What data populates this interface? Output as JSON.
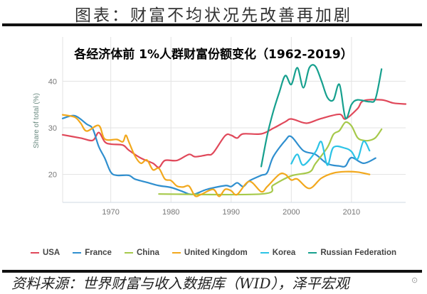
{
  "header": {
    "title": "图表：财富不均状况先改善再加剧"
  },
  "footer": {
    "source": "资料来源：世界财富与收入数据库（WID），泽平宏观",
    "watermark": "泽平宏观"
  },
  "chart_data": {
    "type": "line",
    "title": "各经济体前 1%人群财富份额变化（1962-2019）",
    "xlabel": "",
    "ylabel": "Share of total (%)",
    "xlim": [
      1962,
      2019
    ],
    "ylim": [
      14,
      49.5
    ],
    "xticks": [
      1970,
      1980,
      1990,
      2000,
      2010
    ],
    "yticks": [
      20,
      30,
      40
    ],
    "grid": true,
    "legend_position": "bottom",
    "series": [
      {
        "name": "USA",
        "color": "#e0485a",
        "points": [
          [
            1962,
            28.5
          ],
          [
            1965,
            27.8
          ],
          [
            1967,
            27.3
          ],
          [
            1968,
            29
          ],
          [
            1969,
            27
          ],
          [
            1970,
            26.5
          ],
          [
            1972,
            26.3
          ],
          [
            1973,
            25.2
          ],
          [
            1975,
            23.5
          ],
          [
            1977,
            22.4
          ],
          [
            1978,
            21.5
          ],
          [
            1979,
            23
          ],
          [
            1981,
            23
          ],
          [
            1983,
            24.3
          ],
          [
            1984,
            23.8
          ],
          [
            1986,
            24.2
          ],
          [
            1987,
            24.6
          ],
          [
            1989,
            28.3
          ],
          [
            1990,
            28.4
          ],
          [
            1991,
            27.8
          ],
          [
            1992,
            28.7
          ],
          [
            1995,
            28.7
          ],
          [
            1997,
            29.9
          ],
          [
            1999,
            31.3
          ],
          [
            2000,
            31.9
          ],
          [
            2002,
            31.1
          ],
          [
            2003,
            31.1
          ],
          [
            2005,
            32
          ],
          [
            2008,
            32.9
          ],
          [
            2009,
            31.9
          ],
          [
            2011,
            34.1
          ],
          [
            2012,
            35.8
          ],
          [
            2015,
            36
          ],
          [
            2017,
            35.3
          ],
          [
            2019,
            35.1
          ]
        ]
      },
      {
        "name": "France",
        "color": "#2f8fcf",
        "points": [
          [
            1962,
            32
          ],
          [
            1964,
            32.6
          ],
          [
            1966,
            30.8
          ],
          [
            1967,
            29.8
          ],
          [
            1968,
            26
          ],
          [
            1969,
            23.5
          ],
          [
            1970,
            20.5
          ],
          [
            1971,
            19.8
          ],
          [
            1973,
            19.8
          ],
          [
            1974,
            19
          ],
          [
            1976,
            18.3
          ],
          [
            1978,
            17.6
          ],
          [
            1980,
            17.2
          ],
          [
            1982,
            16.3
          ],
          [
            1983,
            15.8
          ],
          [
            1984,
            15.8
          ],
          [
            1986,
            16.8
          ],
          [
            1989,
            17.6
          ],
          [
            1990,
            17.4
          ],
          [
            1991,
            18.2
          ],
          [
            1992,
            17.4
          ],
          [
            1993,
            18.6
          ],
          [
            1995,
            19.8
          ],
          [
            1996,
            20.4
          ],
          [
            1997,
            23.8
          ],
          [
            1999,
            27.3
          ],
          [
            2000,
            28.1
          ],
          [
            2002,
            25.1
          ],
          [
            2004,
            24.3
          ],
          [
            2006,
            22.3
          ],
          [
            2008,
            21.8
          ],
          [
            2009,
            21.8
          ],
          [
            2010,
            23.6
          ],
          [
            2012,
            22.4
          ],
          [
            2014,
            23.5
          ]
        ]
      },
      {
        "name": "China",
        "color": "#a6c94a",
        "points": [
          [
            1978,
            15.8
          ],
          [
            1995,
            15.8
          ],
          [
            1997,
            17.7
          ],
          [
            2000,
            19.7
          ],
          [
            2003,
            20.5
          ],
          [
            2004,
            22.3
          ],
          [
            2006,
            25.8
          ],
          [
            2007,
            28.6
          ],
          [
            2008,
            29.4
          ],
          [
            2009,
            31.2
          ],
          [
            2010,
            30.4
          ],
          [
            2011,
            27.9
          ],
          [
            2012,
            27.3
          ],
          [
            2013,
            27.3
          ],
          [
            2014,
            27.9
          ],
          [
            2015,
            29.7
          ]
        ]
      },
      {
        "name": "United Kingdom",
        "color": "#f2a81d",
        "points": [
          [
            1962,
            32.8
          ],
          [
            1964,
            32.3
          ],
          [
            1965,
            31
          ],
          [
            1966,
            29.3
          ],
          [
            1968,
            30.5
          ],
          [
            1969,
            27.6
          ],
          [
            1971,
            27.5
          ],
          [
            1972,
            27
          ],
          [
            1972.5,
            28.4
          ],
          [
            1973,
            27
          ],
          [
            1974,
            24
          ],
          [
            1975,
            22.4
          ],
          [
            1976,
            23.1
          ],
          [
            1977,
            21
          ],
          [
            1978,
            21.3
          ],
          [
            1979,
            19
          ],
          [
            1980,
            18.7
          ],
          [
            1981,
            17.5
          ],
          [
            1982,
            17.3
          ],
          [
            1983,
            17.5
          ],
          [
            1984,
            15.4
          ],
          [
            1985,
            15.7
          ],
          [
            1987,
            16.8
          ],
          [
            1988,
            15.3
          ],
          [
            1989,
            16.8
          ],
          [
            1990,
            16.5
          ],
          [
            1991,
            15.7
          ],
          [
            1993,
            18.5
          ],
          [
            1995,
            16.3
          ],
          [
            1996,
            17.4
          ],
          [
            1998,
            20
          ],
          [
            1999,
            20
          ],
          [
            2000,
            18.8
          ],
          [
            2001,
            19
          ],
          [
            2003,
            17
          ],
          [
            2005,
            19.2
          ],
          [
            2007,
            20.3
          ],
          [
            2009,
            20.6
          ],
          [
            2011,
            20.5
          ],
          [
            2013,
            20
          ]
        ]
      },
      {
        "name": "Korea",
        "color": "#2cc3e6",
        "points": [
          [
            2000,
            22.3
          ],
          [
            2001,
            24.3
          ],
          [
            2002,
            22
          ],
          [
            2004,
            24.8
          ],
          [
            2005,
            27
          ],
          [
            2006,
            22
          ],
          [
            2007,
            25.8
          ],
          [
            2009,
            25.6
          ],
          [
            2010,
            24.9
          ],
          [
            2011,
            23.3
          ],
          [
            2012,
            27.1
          ],
          [
            2013,
            25.1
          ]
        ]
      },
      {
        "name": "Russian Federation",
        "color": "#16a08e",
        "points": [
          [
            1995,
            21.7
          ],
          [
            1996,
            28.4
          ],
          [
            1997,
            33.5
          ],
          [
            1998,
            37.6
          ],
          [
            1999,
            41.2
          ],
          [
            2000,
            39.3
          ],
          [
            2001,
            42.9
          ],
          [
            2002,
            38.6
          ],
          [
            2003,
            42.9
          ],
          [
            2004,
            43.2
          ],
          [
            2005,
            40.1
          ],
          [
            2006,
            36.5
          ],
          [
            2007,
            36
          ],
          [
            2008,
            39.3
          ],
          [
            2009,
            32.1
          ],
          [
            2010,
            35
          ],
          [
            2011,
            36
          ],
          [
            2013,
            35.6
          ],
          [
            2014,
            36.3
          ],
          [
            2015,
            42.6
          ]
        ]
      }
    ]
  }
}
